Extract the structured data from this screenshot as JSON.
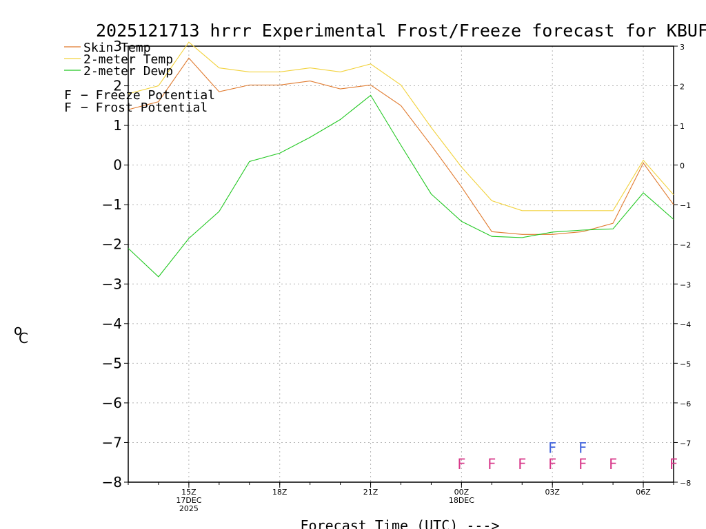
{
  "chart_data": {
    "type": "line",
    "title": "2025121713 hrrr Experimental Frost/Freeze forecast for KBUF",
    "xlabel": "Forecast Time (UTC) --->",
    "ylabel": "°C",
    "unit_symbol": "o",
    "unit_letter": "C",
    "ylim": [
      -8,
      3
    ],
    "yticks": [
      3,
      2,
      1,
      0,
      -1,
      -2,
      -3,
      -4,
      -5,
      -6,
      -7,
      -8
    ],
    "ytick_labels": [
      "3",
      "2",
      "1",
      "0",
      "−1",
      "−2",
      "−3",
      "−4",
      "−5",
      "−6",
      "−7",
      "−8"
    ],
    "xlim": [
      13,
      31
    ],
    "x_hours": [
      13,
      14,
      15,
      16,
      17,
      18,
      19,
      20,
      21,
      22,
      23,
      24,
      25,
      26,
      27,
      28,
      29,
      30,
      31
    ],
    "xticks": [
      {
        "hour": 15,
        "lines": [
          "15Z",
          "17DEC",
          "2025"
        ]
      },
      {
        "hour": 18,
        "lines": [
          "18Z"
        ]
      },
      {
        "hour": 21,
        "lines": [
          "21Z"
        ]
      },
      {
        "hour": 24,
        "lines": [
          "00Z",
          "18DEC"
        ]
      },
      {
        "hour": 27,
        "lines": [
          "03Z"
        ]
      },
      {
        "hour": 30,
        "lines": [
          "06Z"
        ]
      }
    ],
    "series": [
      {
        "name": "Skin Temp",
        "color": "#e07a2e",
        "values": [
          1.4,
          1.6,
          2.7,
          1.85,
          2.02,
          2.02,
          2.12,
          1.92,
          2.02,
          1.5,
          0.5,
          -0.55,
          -1.68,
          -1.75,
          -1.75,
          -1.68,
          -1.47,
          0.05,
          -1.0
        ]
      },
      {
        "name": "2-meter Temp",
        "color": "#f2d23c",
        "values": [
          1.8,
          2.0,
          3.1,
          2.45,
          2.35,
          2.35,
          2.45,
          2.35,
          2.55,
          2.02,
          0.95,
          -0.05,
          -0.9,
          -1.15,
          -1.15,
          -1.15,
          -1.15,
          0.12,
          -0.75
        ]
      },
      {
        "name": "2-meter Dewp",
        "color": "#22c822",
        "values": [
          -2.1,
          -2.82,
          -1.85,
          -1.17,
          0.09,
          0.3,
          0.7,
          1.15,
          1.76,
          0.5,
          -0.73,
          -1.42,
          -1.8,
          -1.83,
          -1.69,
          -1.64,
          -1.61,
          -0.7,
          -1.37
        ]
      }
    ],
    "legend": {
      "position": "top-left",
      "items": [
        "Skin Temp",
        "2-meter Temp",
        "2-meter Dewp"
      ],
      "flag_items": [
        {
          "flag": "F",
          "text": "− Freeze Potential",
          "color": "#d8388a"
        },
        {
          "flag": "F",
          "text": "− Frost Potential",
          "color": "#4466dd"
        }
      ]
    },
    "freeze_flags": {
      "letter": "F",
      "color": "#d8388a",
      "level": -7.53,
      "hours": [
        24,
        25,
        26,
        27,
        28,
        29,
        31
      ]
    },
    "frost_flags": {
      "letter": "F",
      "color": "#4466dd",
      "level": -7.12,
      "hours": [
        27,
        28
      ]
    }
  }
}
